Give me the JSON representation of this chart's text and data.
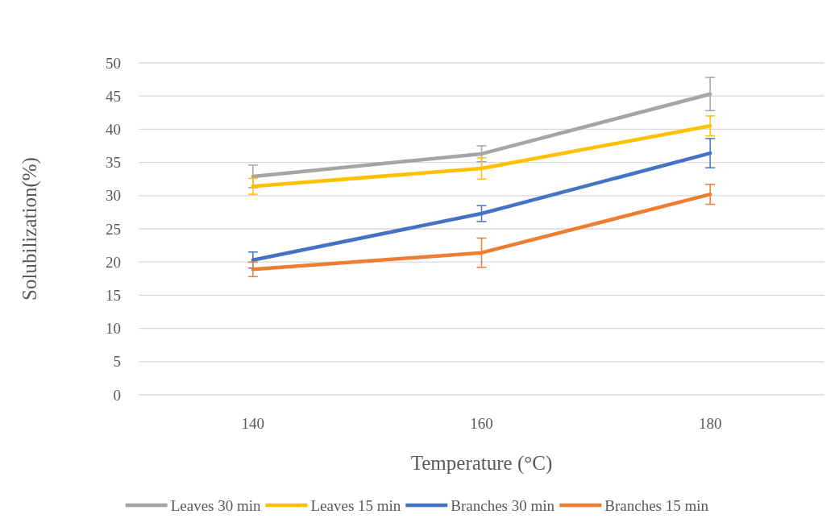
{
  "chart_data": {
    "type": "line",
    "xlabel": "Temperature  (°C)",
    "ylabel": "Solubilization(%)",
    "categories": [
      "140",
      "160",
      "180"
    ],
    "ylim": [
      0,
      50
    ],
    "yticks": [
      0,
      5,
      10,
      15,
      20,
      25,
      30,
      35,
      40,
      45,
      50
    ],
    "grid": "y",
    "legend": "bottom",
    "marker": "none",
    "line_style": "solid",
    "series": [
      {
        "name": "Leaves 30 min",
        "color": "#a5a5a5",
        "values": [
          32.9,
          36.3,
          45.3
        ],
        "errors": [
          1.7,
          1.2,
          2.5
        ]
      },
      {
        "name": "Leaves 15 min",
        "color": "#ffc000",
        "values": [
          31.4,
          34.1,
          40.5
        ],
        "errors": [
          1.2,
          1.6,
          1.5
        ]
      },
      {
        "name": "Branches 30 min",
        "color": "#4472c4",
        "values": [
          20.3,
          27.3,
          36.4
        ],
        "errors": [
          1.2,
          1.2,
          2.2
        ]
      },
      {
        "name": "Branches 15 min",
        "color": "#ed7d31",
        "values": [
          18.9,
          21.4,
          30.2
        ],
        "errors": [
          1.1,
          2.2,
          1.5
        ]
      }
    ]
  }
}
